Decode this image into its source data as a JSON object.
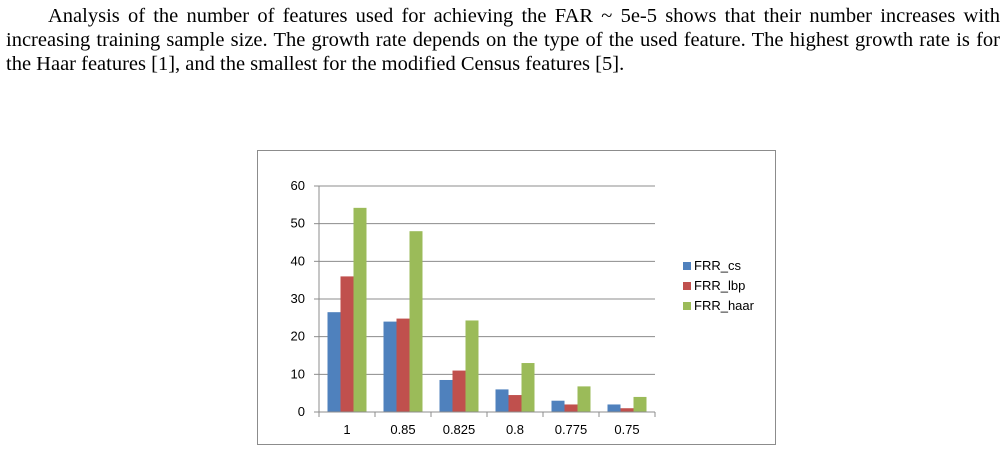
{
  "paragraph": "Analysis of the number of features used for achieving the FAR ~ 5e-5 shows that their number increases with increasing training sample size. The growth rate depends on the type of the used feature. The highest growth rate is for the Haar features [1], and the smallest for the modified Census features [5].",
  "chart_data": {
    "type": "bar",
    "categories": [
      "1",
      "0.85",
      "0.825",
      "0.8",
      "0.775",
      "0.75"
    ],
    "series": [
      {
        "name": "FRR_cs",
        "color": "#4f81bd",
        "values": [
          26.5,
          24,
          8.5,
          6,
          3,
          2
        ]
      },
      {
        "name": "FRR_lbp",
        "color": "#c0504d",
        "values": [
          36,
          24.8,
          11,
          4.5,
          2,
          1
        ]
      },
      {
        "name": "FRR_haar",
        "color": "#9bbb59",
        "values": [
          54.2,
          48,
          24.3,
          13,
          6.8,
          4
        ]
      }
    ],
    "yticks": [
      "0",
      "10",
      "20",
      "30",
      "40",
      "50",
      "60"
    ],
    "ylim": [
      0,
      60
    ],
    "grid": true,
    "legend_position": "right"
  }
}
